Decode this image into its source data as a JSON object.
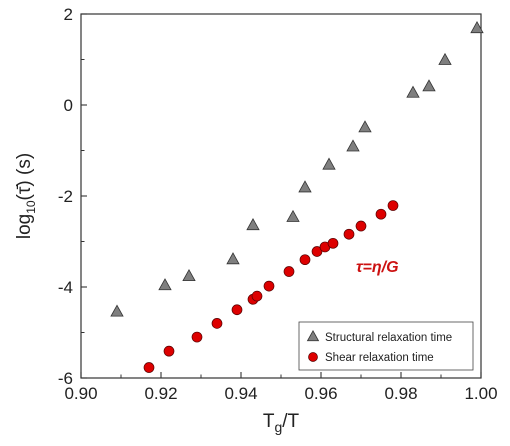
{
  "chart_data": {
    "type": "scatter",
    "xlim": [
      0.9,
      1.0
    ],
    "ylim": [
      -6,
      2
    ],
    "x_ticks": [
      "0.90",
      "0.92",
      "0.94",
      "0.96",
      "0.98",
      "1.00"
    ],
    "y_ticks": [
      "-6",
      "-4",
      "-2",
      "0",
      "2"
    ],
    "x_tick_values": [
      0.9,
      0.92,
      0.94,
      0.96,
      0.98,
      1.0
    ],
    "y_tick_values": [
      -6,
      -4,
      -2,
      0,
      2
    ],
    "grid": false,
    "legend_position": "bottom-right",
    "annotation": "τ=η/G",
    "annotation_color": "#cc1111",
    "series": [
      {
        "name": "Structural relaxation time",
        "marker": "triangle",
        "color": "#7f7f7f",
        "points": [
          {
            "x": 0.909,
            "y": -4.55
          },
          {
            "x": 0.921,
            "y": -3.97
          },
          {
            "x": 0.927,
            "y": -3.77
          },
          {
            "x": 0.938,
            "y": -3.4
          },
          {
            "x": 0.943,
            "y": -2.65
          },
          {
            "x": 0.953,
            "y": -2.47
          },
          {
            "x": 0.956,
            "y": -1.82
          },
          {
            "x": 0.962,
            "y": -1.32
          },
          {
            "x": 0.968,
            "y": -0.92
          },
          {
            "x": 0.971,
            "y": -0.5
          },
          {
            "x": 0.983,
            "y": 0.26
          },
          {
            "x": 0.987,
            "y": 0.4
          },
          {
            "x": 0.991,
            "y": 0.98
          },
          {
            "x": 0.999,
            "y": 1.68
          }
        ]
      },
      {
        "name": "Shear relaxation time",
        "marker": "circle",
        "color": "#dd0000",
        "points": [
          {
            "x": 0.917,
            "y": -5.77
          },
          {
            "x": 0.922,
            "y": -5.41
          },
          {
            "x": 0.929,
            "y": -5.1
          },
          {
            "x": 0.934,
            "y": -4.8
          },
          {
            "x": 0.939,
            "y": -4.5
          },
          {
            "x": 0.943,
            "y": -4.27
          },
          {
            "x": 0.944,
            "y": -4.2
          },
          {
            "x": 0.947,
            "y": -3.98
          },
          {
            "x": 0.952,
            "y": -3.66
          },
          {
            "x": 0.956,
            "y": -3.4
          },
          {
            "x": 0.959,
            "y": -3.22
          },
          {
            "x": 0.961,
            "y": -3.12
          },
          {
            "x": 0.963,
            "y": -3.04
          },
          {
            "x": 0.967,
            "y": -2.84
          },
          {
            "x": 0.97,
            "y": -2.66
          },
          {
            "x": 0.975,
            "y": -2.4
          },
          {
            "x": 0.978,
            "y": -2.21
          }
        ]
      }
    ]
  }
}
